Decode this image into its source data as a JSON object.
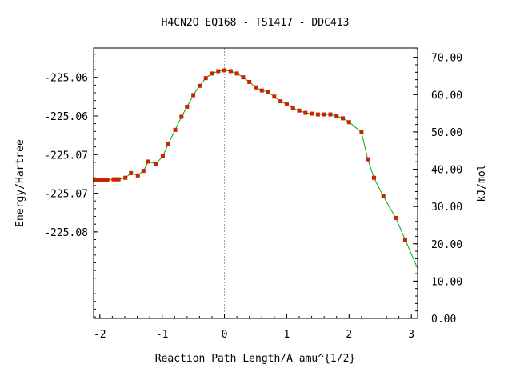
{
  "chart_data": {
    "type": "line",
    "title": "H4CN2O   EQ168 - TS1417 - DDC413",
    "xlabel": "Reaction Path Length/A amu^{1/2}",
    "ylabel": "Energy/Hartree",
    "y2label": "kJ/mol",
    "xlim": [
      -2.1,
      3.1
    ],
    "ylim": [
      -225.0862,
      -225.0512
    ],
    "y2lim": [
      0.0,
      72.5
    ],
    "x_ticks": [
      -2,
      -1,
      0,
      1,
      2,
      3
    ],
    "x_tick_labels": [
      "-2",
      "-1",
      "0",
      "1",
      "2",
      "3"
    ],
    "y_ticks": [
      -225.055,
      -225.06,
      -225.065,
      -225.07,
      -225.075
    ],
    "y_tick_labels": [
      "-225.06",
      "-225.06",
      "-225.07",
      "-225.07",
      "-225.08"
    ],
    "y2_ticks": [
      0,
      10,
      20,
      30,
      40,
      50,
      60,
      70
    ],
    "y2_tick_labels": [
      "0.00",
      "10.00",
      "20.00",
      "30.00",
      "40.00",
      "50.00",
      "60.00",
      "70.00"
    ],
    "ts_marker_x": 0,
    "grid": false,
    "line_color": "#00aa00",
    "marker_color": "#cc2200",
    "series": [
      {
        "x": [
          -2.08,
          -2.04,
          -2.0,
          -1.96,
          -1.92,
          -1.88,
          -1.78,
          -1.74,
          -1.7,
          -1.59,
          -1.5,
          -1.39,
          -1.3,
          -1.22,
          -1.1,
          -0.99,
          -0.9,
          -0.79,
          -0.69,
          -0.6,
          -0.5,
          -0.4,
          -0.3,
          -0.2,
          -0.1,
          0.0,
          0.1,
          0.2,
          0.3,
          0.4,
          0.5,
          0.6,
          0.7,
          0.8,
          0.9,
          1.0,
          1.1,
          1.2,
          1.3,
          1.4,
          1.5,
          1.6,
          1.7,
          1.8,
          1.9,
          2.0,
          2.2,
          2.3,
          2.4,
          2.55,
          2.75,
          2.9
        ],
        "y": [
          -225.0683,
          -225.0683,
          -225.0683,
          -225.0683,
          -225.0683,
          -225.0683,
          -225.0682,
          -225.0682,
          -225.0682,
          -225.068,
          -225.0674,
          -225.0677,
          -225.0671,
          -225.0659,
          -225.0662,
          -225.0652,
          -225.0636,
          -225.0618,
          -225.0601,
          -225.0588,
          -225.0573,
          -225.0561,
          -225.0551,
          -225.0545,
          -225.0542,
          -225.0541,
          -225.0542,
          -225.0545,
          -225.055,
          -225.0556,
          -225.0563,
          -225.0567,
          -225.0569,
          -225.0575,
          -225.0581,
          -225.0585,
          -225.059,
          -225.0593,
          -225.0596,
          -225.0597,
          -225.0598,
          -225.0598,
          -225.0598,
          -225.06,
          -225.0603,
          -225.0608,
          -225.0621,
          -225.0656,
          -225.068,
          -225.0704,
          -225.0732,
          -225.076
        ]
      }
    ]
  }
}
